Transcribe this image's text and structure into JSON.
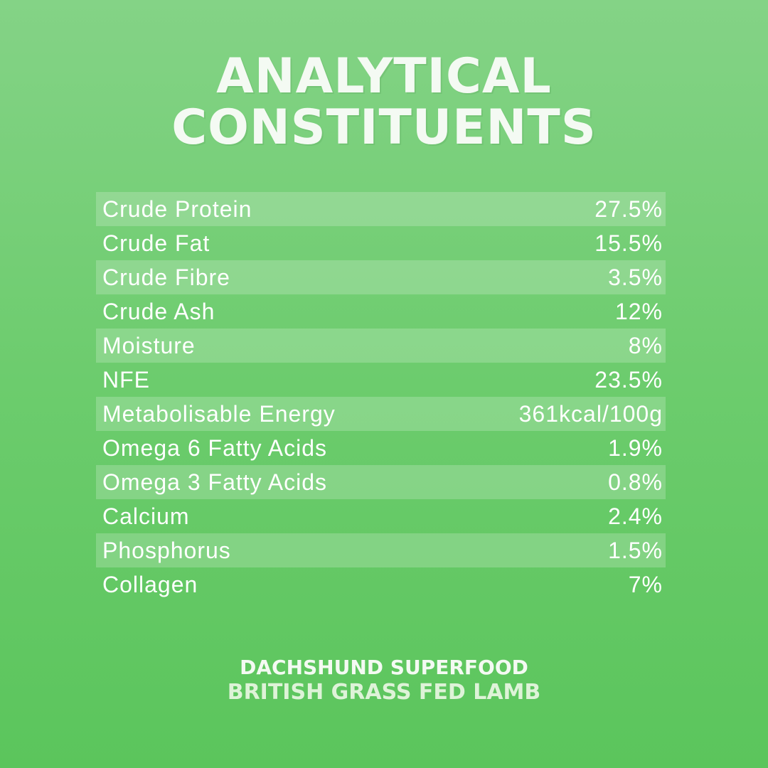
{
  "title": {
    "line1": "ANALYTICAL",
    "line2": "CONSTITUENTS"
  },
  "constituents": [
    {
      "name": "Crude Protein",
      "value": "27.5%"
    },
    {
      "name": "Crude Fat",
      "value": "15.5%"
    },
    {
      "name": "Crude Fibre",
      "value": "3.5%"
    },
    {
      "name": "Crude Ash",
      "value": "12%"
    },
    {
      "name": "Moisture",
      "value": "8%"
    },
    {
      "name": "NFE",
      "value": "23.5%"
    },
    {
      "name": "Metabolisable Energy",
      "value": "361kcal/100g"
    },
    {
      "name": "Omega 6 Fatty Acids",
      "value": "1.9%"
    },
    {
      "name": "Omega 3 Fatty Acids",
      "value": "0.8%"
    },
    {
      "name": "Calcium",
      "value": "2.4%"
    },
    {
      "name": "Phosphorus",
      "value": "1.5%"
    },
    {
      "name": "Collagen",
      "value": "7%"
    }
  ],
  "footer": {
    "brand": "DACHSHUND SUPERFOOD",
    "product": "BRITISH GRASS FED LAMB"
  },
  "colors": {
    "background_top": "#84d386",
    "background_bottom": "#5bc55c",
    "text": "#ffffff"
  }
}
